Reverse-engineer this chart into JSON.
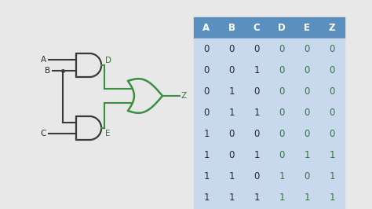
{
  "bg_color": "#e8e8e8",
  "table_header_bg": "#5b8fbe",
  "table_row_bg": "#c9d9ed",
  "table_header_color": "#ffffff",
  "table_black_color": "#2a2a2a",
  "table_green_color": "#2d7a3a",
  "gate_color": "#3a3a3a",
  "gate_green_color": "#3a9040",
  "label_color": "#2a2a2a",
  "green_label_color": "#2d7a3a",
  "headers": [
    "A",
    "B",
    "C",
    "D",
    "E",
    "Z"
  ],
  "rows": [
    [
      0,
      0,
      0,
      0,
      0,
      0
    ],
    [
      0,
      0,
      1,
      0,
      0,
      0
    ],
    [
      0,
      1,
      0,
      0,
      0,
      0
    ],
    [
      0,
      1,
      1,
      0,
      0,
      0
    ],
    [
      1,
      0,
      0,
      0,
      0,
      0
    ],
    [
      1,
      0,
      1,
      0,
      1,
      1
    ],
    [
      1,
      1,
      0,
      1,
      0,
      1
    ],
    [
      1,
      1,
      1,
      1,
      1,
      1
    ]
  ]
}
